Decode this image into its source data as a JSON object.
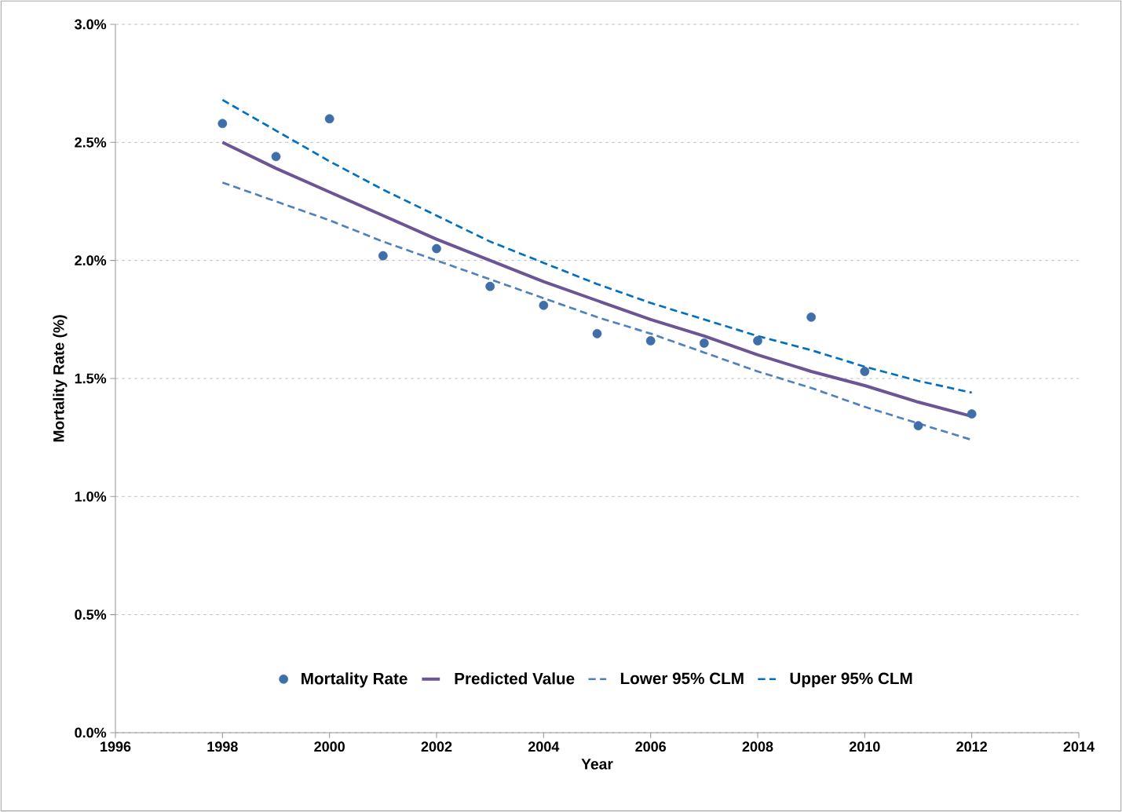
{
  "chart_data": {
    "type": "line",
    "xlabel": "Year",
    "ylabel": "Mortality Rate (%)",
    "x": [
      1998,
      1999,
      2000,
      2001,
      2002,
      2003,
      2004,
      2005,
      2006,
      2007,
      2008,
      2009,
      2010,
      2011,
      2012
    ],
    "series": [
      {
        "name": "Mortality Rate",
        "type": "scatter",
        "color": "#3f6ea8",
        "values": [
          2.58,
          2.44,
          2.6,
          2.02,
          2.05,
          1.89,
          1.81,
          1.69,
          1.66,
          1.65,
          1.66,
          1.76,
          1.53,
          1.3,
          1.35
        ]
      },
      {
        "name": "Predicted Value",
        "marker": "none",
        "line_style": "solid",
        "color": "#6b5594",
        "values": [
          2.5,
          2.39,
          2.29,
          2.19,
          2.09,
          2.0,
          1.91,
          1.83,
          1.75,
          1.68,
          1.6,
          1.53,
          1.47,
          1.4,
          1.34
        ]
      },
      {
        "name": "Lower 95% CLM",
        "marker": "none",
        "line_style": "dashed",
        "color": "#4f81bd",
        "values": [
          2.33,
          2.25,
          2.17,
          2.08,
          2.0,
          1.92,
          1.84,
          1.76,
          1.69,
          1.61,
          1.53,
          1.46,
          1.38,
          1.31,
          1.24
        ]
      },
      {
        "name": "Upper 95% CLM",
        "marker": "none",
        "line_style": "dashed",
        "color": "#0070c0",
        "values": [
          2.68,
          2.55,
          2.42,
          2.3,
          2.19,
          2.08,
          1.99,
          1.9,
          1.82,
          1.75,
          1.68,
          1.62,
          1.55,
          1.49,
          1.44
        ]
      }
    ],
    "xlim": [
      1996,
      2014
    ],
    "xticks": [
      1996,
      1998,
      2000,
      2002,
      2004,
      2006,
      2008,
      2010,
      2012,
      2014
    ],
    "ylim": [
      0,
      3.0
    ],
    "yticks": [
      {
        "value": 0,
        "label": "0.0%"
      },
      {
        "value": 0.5,
        "label": "0.5%"
      },
      {
        "value": 1.0,
        "label": "1.0%"
      },
      {
        "value": 1.5,
        "label": "1.5%"
      },
      {
        "value": 2.0,
        "label": "2.0%"
      },
      {
        "value": 2.5,
        "label": "2.5%"
      },
      {
        "value": 3.0,
        "label": "3.0%"
      }
    ],
    "grid": "y",
    "legend": "bottom"
  }
}
